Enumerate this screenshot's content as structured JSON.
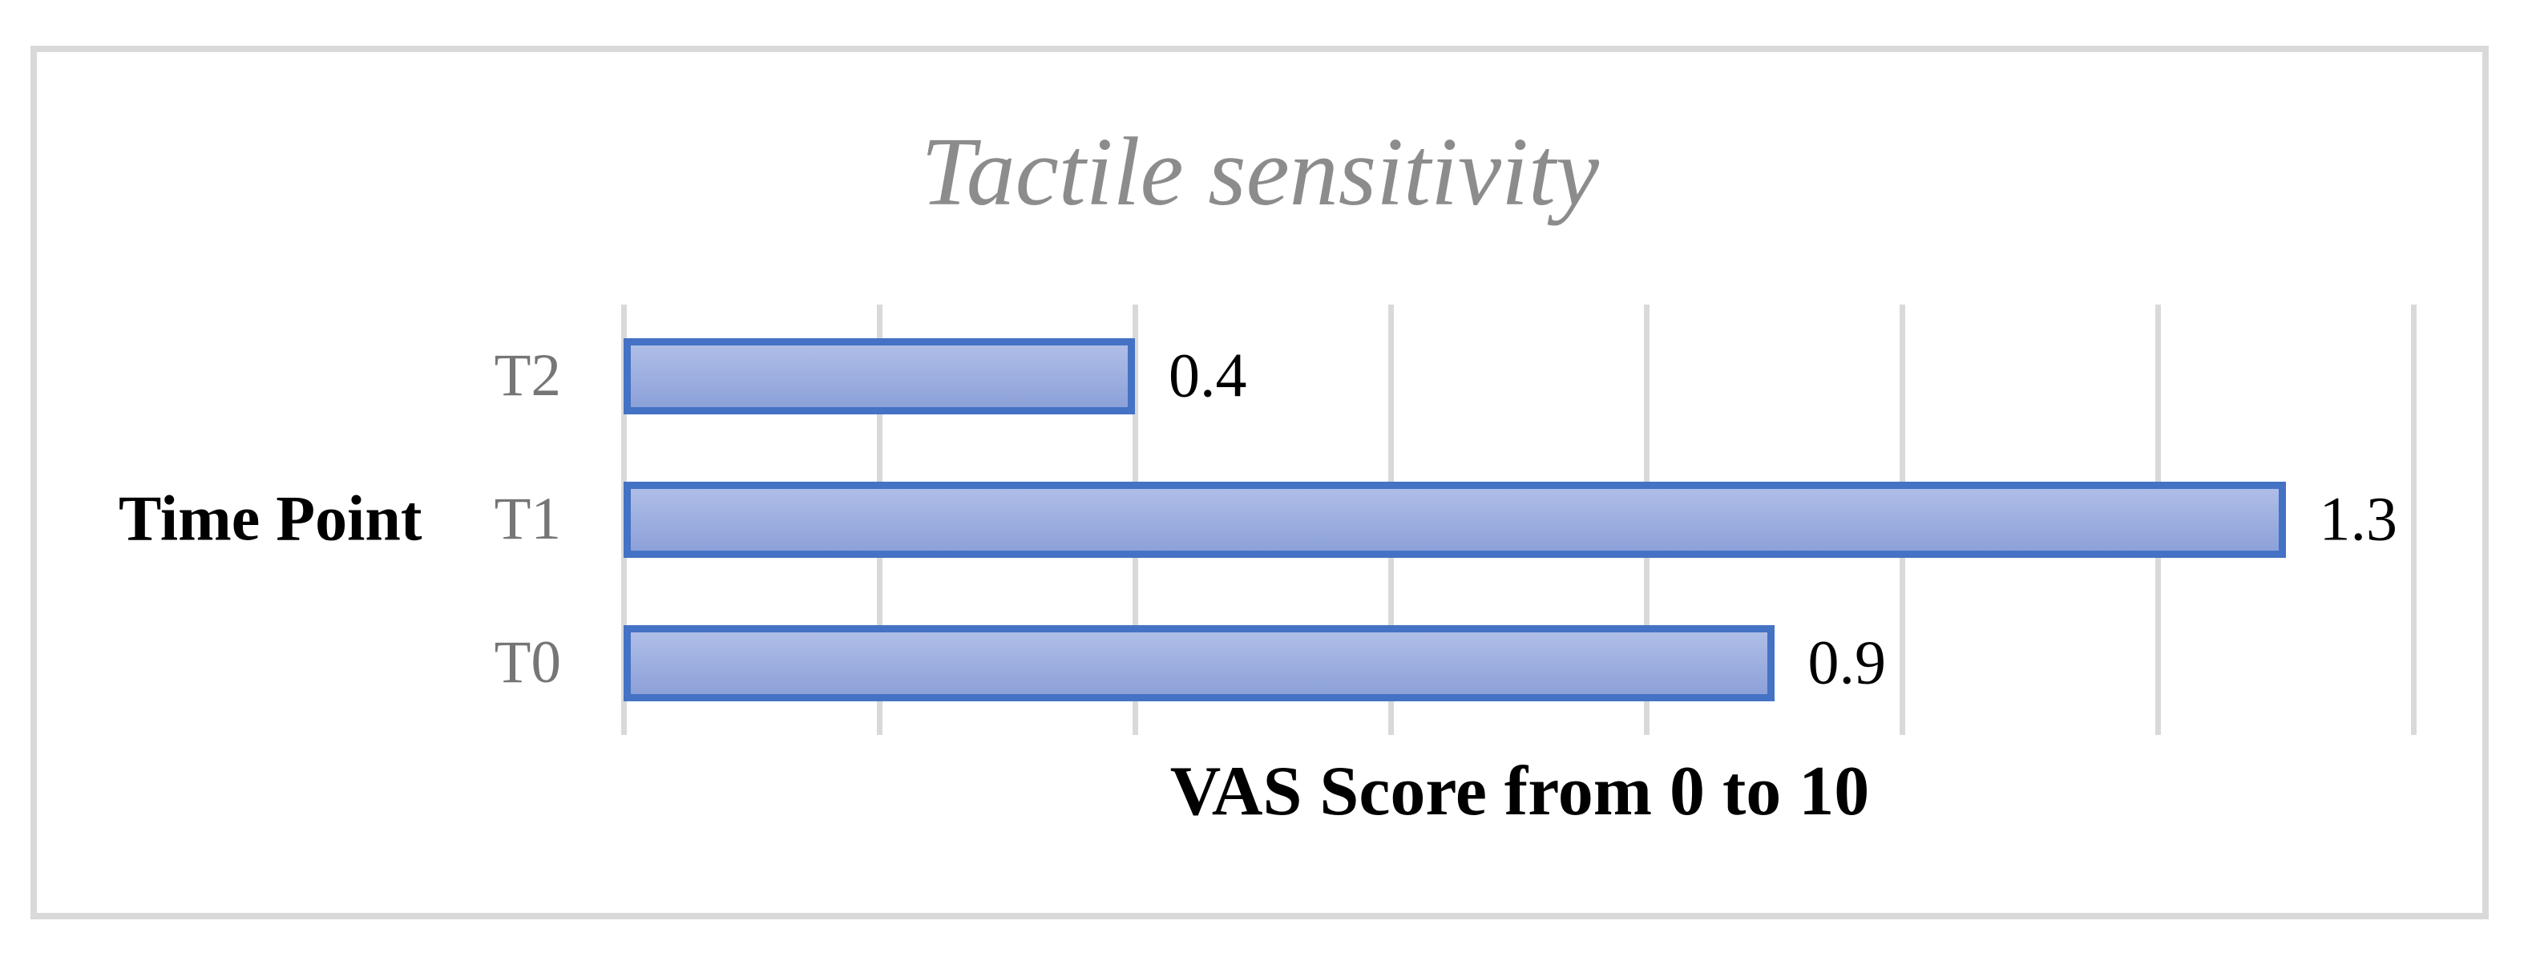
{
  "chart_data": {
    "type": "bar",
    "orientation": "horizontal",
    "title": "Tactile sensitivity",
    "ylabel": "Time Point",
    "xlabel": "VAS Score from 0 to 10",
    "categories": [
      "T2",
      "T1",
      "T0"
    ],
    "values": [
      0.4,
      1.3,
      0.9
    ],
    "data_labels": [
      "0.4",
      "1.3",
      "0.9"
    ],
    "xlim": [
      0,
      1.4
    ],
    "grid_step": 0.2,
    "grid": true,
    "legend": false,
    "category_order_note": "top to bottom",
    "colors": {
      "bar_border": "#4472C4",
      "bar_fill_top": "#AFBEE7",
      "bar_fill_bottom": "#8CA1D9",
      "gridline": "#D9D9D9",
      "frame_border": "#D9D9D9",
      "title_text": "#8C8C8C",
      "category_text": "#767676",
      "value_label_text": "#000000",
      "axis_title_text": "#000000"
    }
  }
}
